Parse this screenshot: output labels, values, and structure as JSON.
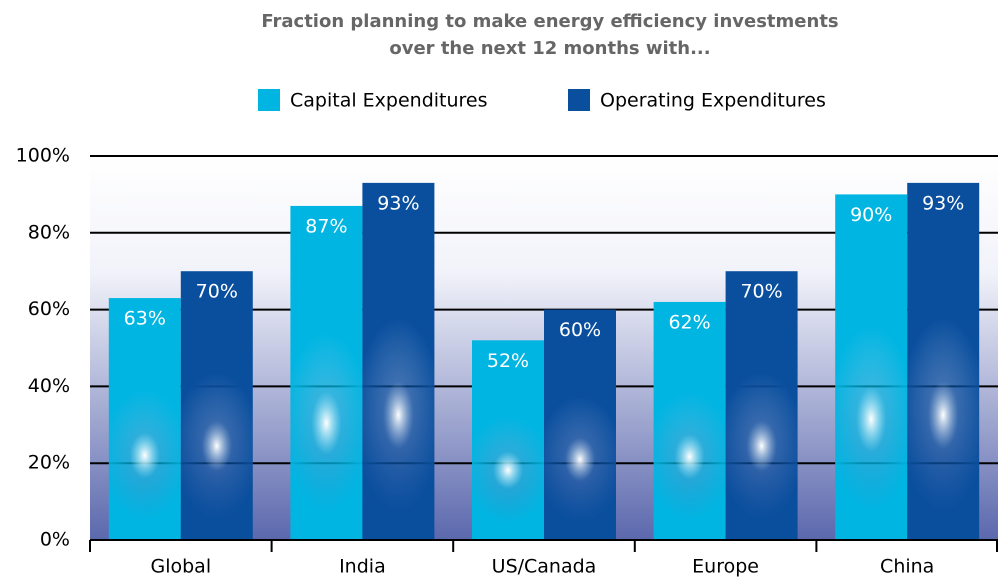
{
  "chart_data": {
    "type": "bar",
    "title": [
      "Fraction planning to make energy efficiency investments",
      "over the next 12 months with..."
    ],
    "categories": [
      "Global",
      "India",
      "US/Canada",
      "Europe",
      "China"
    ],
    "series": [
      {
        "name": "Capital Expenditures",
        "color": "#00b5e2",
        "values": [
          63,
          87,
          52,
          62,
          90
        ],
        "value_labels": [
          "63%",
          "87%",
          "52%",
          "62%",
          "90%"
        ]
      },
      {
        "name": "Operating Expenditures",
        "color": "#0a4f9e",
        "values": [
          70,
          93,
          60,
          70,
          93
        ],
        "value_labels": [
          "70%",
          "93%",
          "60%",
          "70%",
          "93%"
        ]
      }
    ],
    "ylim": [
      0,
      100
    ],
    "yticks": [
      {
        "value": 0,
        "label": "0%"
      },
      {
        "value": 20,
        "label": "20%"
      },
      {
        "value": 40,
        "label": "40%"
      },
      {
        "value": 60,
        "label": "60%"
      },
      {
        "value": 80,
        "label": "80%"
      },
      {
        "value": 100,
        "label": "100%"
      }
    ],
    "grid": true,
    "legend": "top"
  }
}
